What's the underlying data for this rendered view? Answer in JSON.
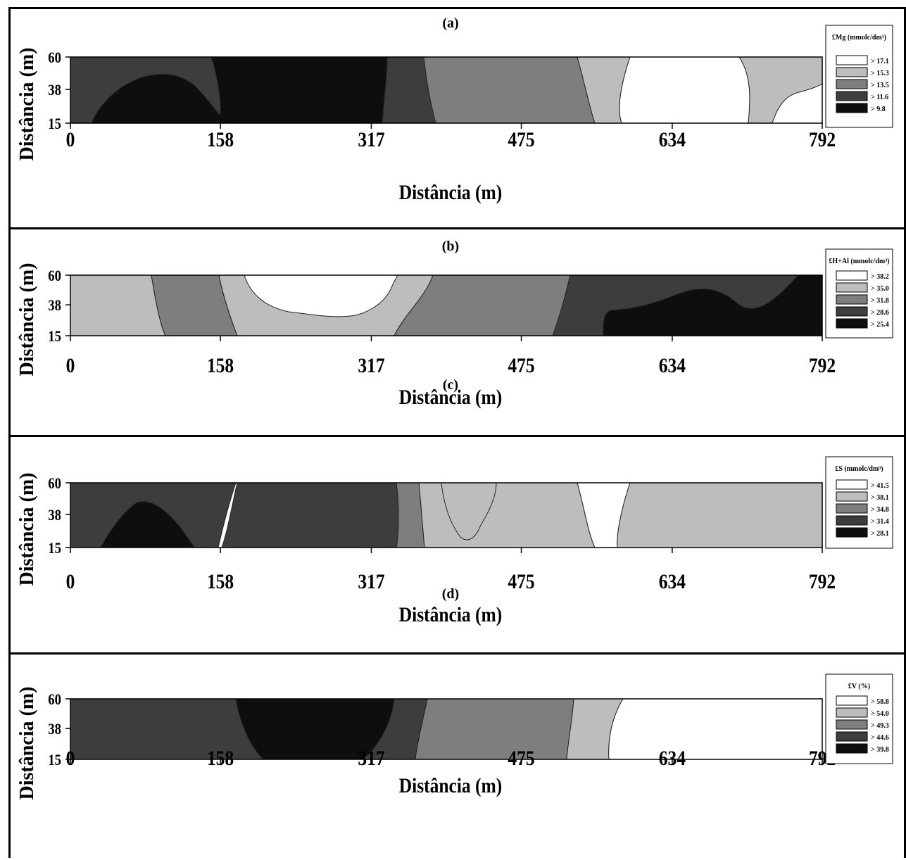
{
  "chart_data": [
    {
      "type": "heatmap",
      "panel_label": "(a)",
      "xlabel": "Distância (m)",
      "ylabel": "Distância (m)",
      "x_ticks": [
        "0",
        "158",
        "317",
        "475",
        "634",
        "792"
      ],
      "y_ticks": [
        "60",
        "38",
        "15"
      ],
      "xlim": [
        0,
        792
      ],
      "ylim": [
        15,
        60
      ],
      "legend": {
        "title": "£Mg (mmolc/dm³)",
        "placement": "right",
        "entries": [
          {
            "label": "> 17.1",
            "color": "#ffffff"
          },
          {
            "label": "> 15.3",
            "color": "#bdbdbd"
          },
          {
            "label": "> 13.5",
            "color": "#7e7e7e"
          },
          {
            "label": "> 11.6",
            "color": "#3d3d3d"
          },
          {
            "label": "> 9.8",
            "color": "#0e0e0e"
          }
        ]
      },
      "zones": [
        {
          "class": "> 11.6",
          "x": [
            0,
            333
          ]
        },
        {
          "class": "> 9.8",
          "x": [
            25,
            330
          ]
        },
        {
          "class": "> 11.6",
          "x": [
            330,
            380
          ]
        },
        {
          "class": "> 13.5",
          "x": [
            375,
            555
          ]
        },
        {
          "class": "> 15.3",
          "x": [
            530,
            590
          ]
        },
        {
          "class": "> 17.1",
          "x": [
            580,
            710
          ]
        },
        {
          "class": "> 15.3",
          "x": [
            700,
            792
          ]
        },
        {
          "class": "> 17.1",
          "x": [
            735,
            792
          ]
        }
      ]
    },
    {
      "type": "heatmap",
      "panel_label": "(b)",
      "xlabel": "Distância (m)",
      "ylabel": "Distância (m)",
      "x_ticks": [
        "0",
        "158",
        "317",
        "475",
        "634",
        "792"
      ],
      "y_ticks": [
        "60",
        "38",
        "15"
      ],
      "xlim": [
        0,
        792
      ],
      "ylim": [
        15,
        60
      ],
      "legend": {
        "title": "£H+Al (mmolc/dm³)",
        "placement": "right",
        "entries": [
          {
            "label": "> 38.2",
            "color": "#ffffff"
          },
          {
            "label": "> 35.0",
            "color": "#bdbdbd"
          },
          {
            "label": "> 31.8",
            "color": "#7e7e7e"
          },
          {
            "label": "> 28.6",
            "color": "#3d3d3d"
          },
          {
            "label": "> 25.4",
            "color": "#0e0e0e"
          }
        ]
      },
      "zones": [
        {
          "class": "> 35.0",
          "x": [
            0,
            100
          ]
        },
        {
          "class": "> 31.8",
          "x": [
            85,
            175
          ]
        },
        {
          "class": "> 35.0",
          "x": [
            155,
            385
          ]
        },
        {
          "class": "> 38.2",
          "x": [
            185,
            330
          ]
        },
        {
          "class": "> 31.8",
          "x": [
            340,
            545
          ]
        },
        {
          "class": "> 28.6",
          "x": [
            510,
            792
          ]
        },
        {
          "class": "> 25.4",
          "x": [
            560,
            792
          ]
        }
      ]
    },
    {
      "type": "heatmap",
      "panel_label": "(c)",
      "xlabel": "Distância (m)",
      "ylabel": "Distância (m)",
      "x_ticks": [
        "0",
        "158",
        "317",
        "475",
        "634",
        "792"
      ],
      "y_ticks": [
        "60",
        "38",
        "15"
      ],
      "xlim": [
        0,
        792
      ],
      "ylim": [
        15,
        60
      ],
      "legend": {
        "title": "£S (mmolc/dm³)",
        "placement": "right",
        "entries": [
          {
            "label": "> 41.5",
            "color": "#ffffff"
          },
          {
            "label": "> 38.1",
            "color": "#bdbdbd"
          },
          {
            "label": "> 34.8",
            "color": "#7e7e7e"
          },
          {
            "label": "> 31.4",
            "color": "#3d3d3d"
          },
          {
            "label": "> 28.1",
            "color": "#0e0e0e"
          }
        ]
      },
      "zones": [
        {
          "class": "> 31.4",
          "x": [
            0,
            175
          ]
        },
        {
          "class": "> 28.1",
          "x": [
            30,
            345
          ]
        },
        {
          "class": "> 31.4",
          "x": [
            345,
            375
          ]
        },
        {
          "class": "> 34.8",
          "x": [
            365,
            550
          ]
        },
        {
          "class": "> 38.1",
          "x": [
            390,
            450
          ]
        },
        {
          "class": "> 38.1",
          "x": [
            535,
            590
          ]
        },
        {
          "class": "> 41.5",
          "x": [
            575,
            792
          ]
        },
        {
          "class": "> 38.1",
          "x": [
            665,
            755
          ]
        }
      ]
    },
    {
      "type": "heatmap",
      "panel_label": "(d)",
      "xlabel": "Distância (m)",
      "ylabel": "Distância (m)",
      "x_ticks": [
        "0",
        "158",
        "317",
        "475",
        "634",
        "792"
      ],
      "y_ticks": [
        "60",
        "38",
        "15"
      ],
      "xlim": [
        0,
        792
      ],
      "ylim": [
        15,
        60
      ],
      "legend": {
        "title": "£V (%)",
        "placement": "right",
        "entries": [
          {
            "label": "> 58.8",
            "color": "#ffffff"
          },
          {
            "label": "> 54.0",
            "color": "#bdbdbd"
          },
          {
            "label": "> 49.3",
            "color": "#7e7e7e"
          },
          {
            "label": "> 44.6",
            "color": "#3d3d3d"
          },
          {
            "label": "> 39.8",
            "color": "#0e0e0e"
          }
        ]
      },
      "zones": [
        {
          "class": "> 44.6",
          "x": [
            0,
            180
          ]
        },
        {
          "class": "> 39.8",
          "x": [
            170,
            340
          ]
        },
        {
          "class": "> 44.6",
          "x": [
            300,
            375
          ]
        },
        {
          "class": "> 49.3",
          "x": [
            360,
            540
          ]
        },
        {
          "class": "> 54.0",
          "x": [
            525,
            580
          ]
        },
        {
          "class": "> 58.8",
          "x": [
            560,
            792
          ]
        }
      ]
    }
  ]
}
